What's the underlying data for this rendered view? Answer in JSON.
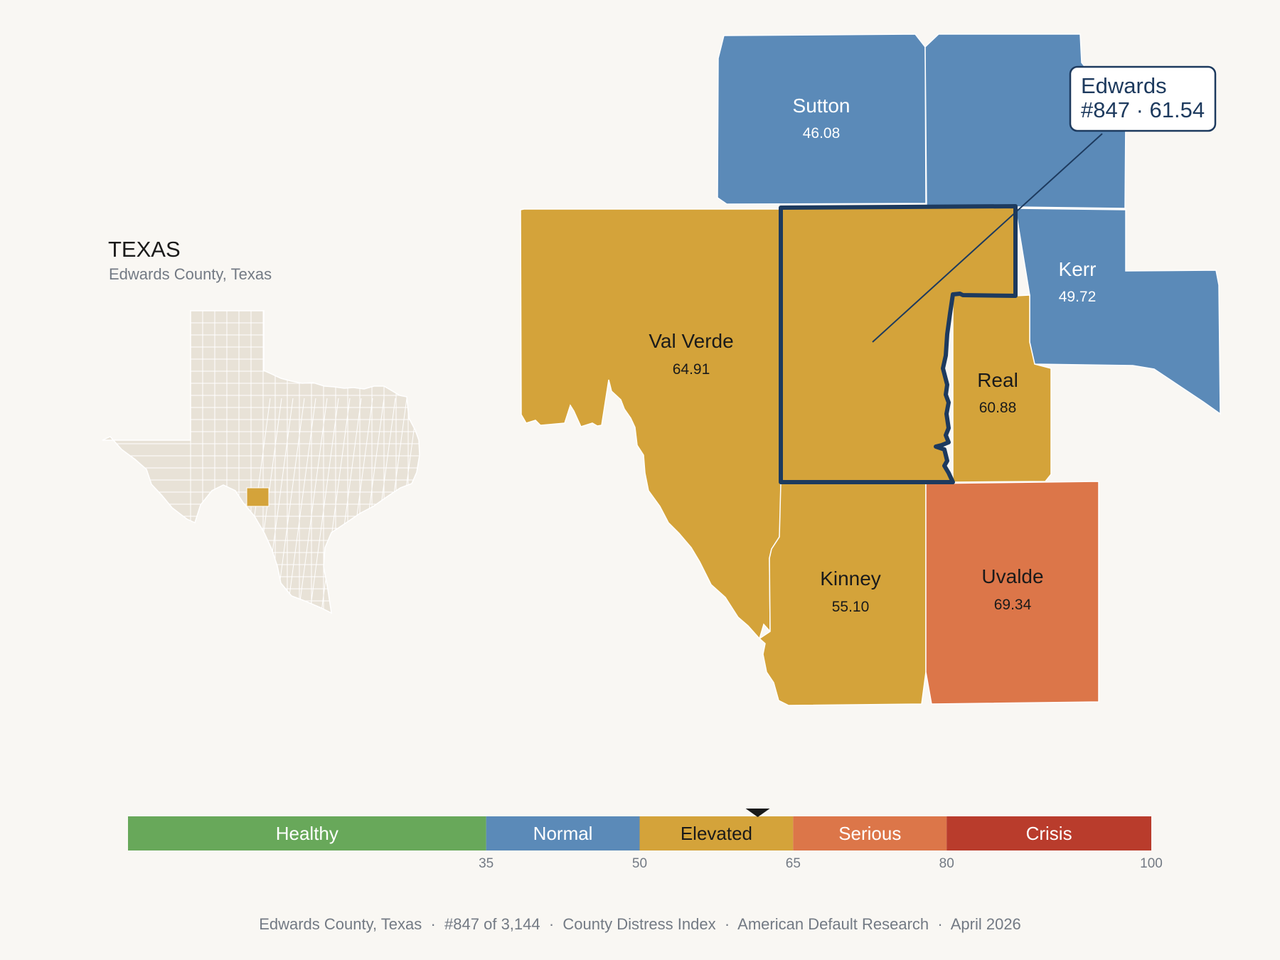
{
  "inset": {
    "state_title": "TEXAS",
    "subtitle": "Edwards County, Texas",
    "highlight_color": "#d4a33a",
    "base_color": "#e8e2d7"
  },
  "map": {
    "counties": [
      {
        "id": "sutton",
        "name": "Sutton",
        "value": "46.08",
        "category": "Normal",
        "color": "#5b8ab8",
        "text_color": "#ffffff"
      },
      {
        "id": "kimble",
        "name": "",
        "value": "",
        "category": "Normal",
        "color": "#5b8ab8",
        "text_color": "#ffffff"
      },
      {
        "id": "kerr",
        "name": "Kerr",
        "value": "49.72",
        "category": "Normal",
        "color": "#5b8ab8",
        "text_color": "#ffffff"
      },
      {
        "id": "val-verde",
        "name": "Val Verde",
        "value": "64.91",
        "category": "Elevated",
        "color": "#d4a33a",
        "text_color": "#1a1a1a"
      },
      {
        "id": "edwards",
        "name": "Edwards",
        "value": "61.54",
        "category": "Elevated",
        "color": "#d4a33a",
        "text_color": "#1a1a1a"
      },
      {
        "id": "real",
        "name": "Real",
        "value": "60.88",
        "category": "Elevated",
        "color": "#d4a33a",
        "text_color": "#1a1a1a"
      },
      {
        "id": "kinney",
        "name": "Kinney",
        "value": "55.10",
        "category": "Elevated",
        "color": "#d4a33a",
        "text_color": "#1a1a1a"
      },
      {
        "id": "uvalde",
        "name": "Uvalde",
        "value": "69.34",
        "category": "Serious",
        "color": "#dc7649",
        "text_color": "#1a1a1a"
      }
    ],
    "outline_color": "#1d3a5e",
    "callout": {
      "line1": "Edwards",
      "line2": "#847 · 61.54"
    }
  },
  "legend": {
    "min": 0,
    "max": 100,
    "current_value": 61.54,
    "segments": [
      {
        "label": "Healthy",
        "from": 0,
        "to": 35,
        "color": "#68a85a",
        "text_color": "#ffffff"
      },
      {
        "label": "Normal",
        "from": 35,
        "to": 50,
        "color": "#5b8ab8",
        "text_color": "#ffffff"
      },
      {
        "label": "Elevated",
        "from": 50,
        "to": 65,
        "color": "#d4a33a",
        "text_color": "#1a1a1a"
      },
      {
        "label": "Serious",
        "from": 65,
        "to": 80,
        "color": "#dc7649",
        "text_color": "#ffffff"
      },
      {
        "label": "Crisis",
        "from": 80,
        "to": 100,
        "color": "#b93c2c",
        "text_color": "#ffffff"
      }
    ],
    "ticks": [
      "35",
      "50",
      "65",
      "80",
      "100"
    ]
  },
  "footer": {
    "text": "Edwards County, Texas  ·  #847 of 3,144  ·  County Distress Index  ·  American Default Research  ·  April 2026"
  }
}
